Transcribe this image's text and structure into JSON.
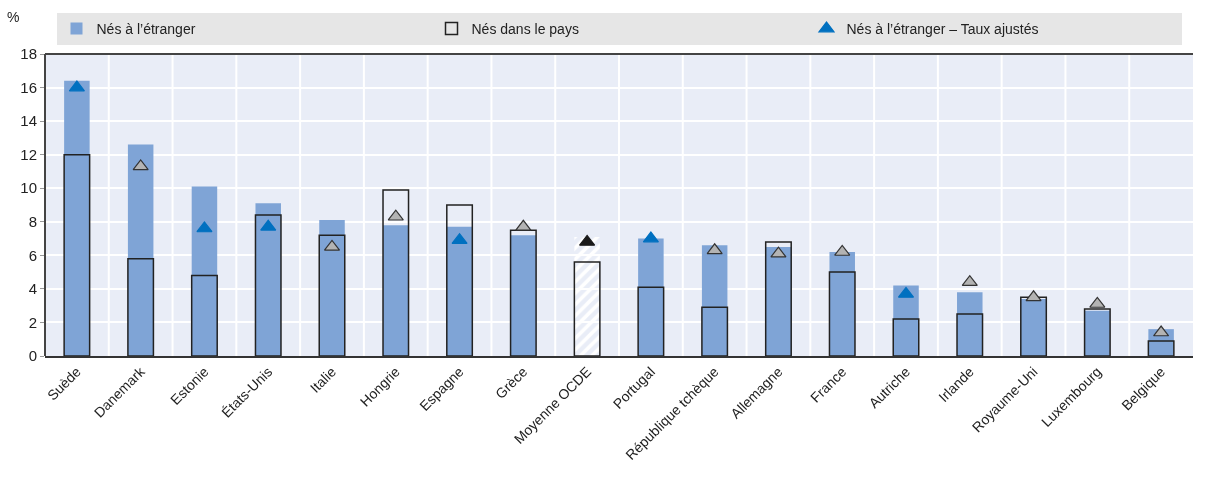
{
  "chart_data": {
    "type": "bar",
    "ylabel": "%",
    "categories": [
      "Suède",
      "Danemark",
      "Estonie",
      "États-Unis",
      "Italie",
      "Hongrie",
      "Espagne",
      "Grèce",
      "Moyenne OCDE",
      "Portugal",
      "République tchèque",
      "Allemagne",
      "France",
      "Autriche",
      "Irlande",
      "Royaume-Uni",
      "Luxembourg",
      "Belgique"
    ],
    "series": [
      {
        "name": "Nés à l’étranger",
        "color": "#7fa4d6",
        "colors": [
          "#7fa4d6",
          "#7fa4d6",
          "#7fa4d6",
          "#7fa4d6",
          "#7fa4d6",
          "#7fa4d6",
          "#7fa4d6",
          "#7fa4d6",
          "#ffffff",
          "#7fa4d6",
          "#7fa4d6",
          "#7fa4d6",
          "#7fa4d6",
          "#7fa4d6",
          "#7fa4d6",
          "#7fa4d6",
          "#7fa4d6",
          "#7fa4d6"
        ],
        "values": [
          16.4,
          12.6,
          10.1,
          9.1,
          8.1,
          7.8,
          7.7,
          7.2,
          7.1,
          7.0,
          6.6,
          6.5,
          6.2,
          4.2,
          3.8,
          3.4,
          2.7,
          1.6
        ]
      },
      {
        "name": "Nés dans le pays",
        "color": "#222222",
        "values": [
          12.0,
          5.8,
          4.8,
          8.4,
          7.2,
          9.9,
          9.0,
          7.5,
          5.6,
          4.1,
          2.9,
          6.8,
          5.0,
          2.2,
          2.5,
          3.5,
          2.8,
          0.9
        ]
      },
      {
        "name": "Nés à l’étranger – Taux ajustés",
        "type": "scatter",
        "color": "#0070c0",
        "colors": [
          "#0070c0",
          "#b3b3b3",
          "#0070c0",
          "#0070c0",
          "#b3b3b3",
          "#b3b3b3",
          "#0070c0",
          "#b3b3b3",
          "#1a1a1a",
          "#0070c0",
          "#b3b3b3",
          "#b3b3b3",
          "#b3b3b3",
          "#0070c0",
          "#b3b3b3",
          "#b3b3b3",
          "#b3b3b3",
          "#b3b3b3"
        ],
        "values": [
          16.0,
          11.3,
          7.6,
          7.7,
          6.5,
          8.3,
          6.9,
          7.7,
          6.8,
          7.0,
          6.3,
          6.1,
          6.2,
          3.7,
          4.4,
          3.5,
          3.1,
          1.4
        ]
      }
    ],
    "ylim": [
      0,
      18
    ],
    "yticks": [
      0,
      2,
      4,
      6,
      8,
      10,
      12,
      14,
      16,
      18
    ],
    "grid": true,
    "legend": "top",
    "marker": "triangle"
  }
}
